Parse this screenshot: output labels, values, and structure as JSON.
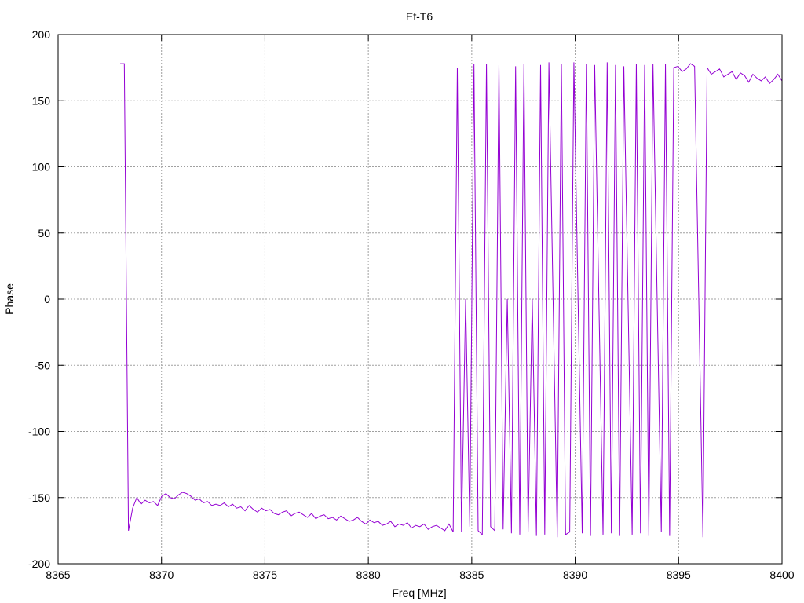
{
  "chart_data": {
    "type": "line",
    "title": "Ef-T6",
    "xlabel": "Freq [MHz]",
    "ylabel": "Phase",
    "xlim": [
      8365,
      8400
    ],
    "ylim": [
      -200,
      200
    ],
    "xticks": [
      8365,
      8370,
      8375,
      8380,
      8385,
      8390,
      8395,
      8400
    ],
    "yticks": [
      -200,
      -150,
      -100,
      -50,
      0,
      50,
      100,
      150,
      200
    ],
    "grid": true,
    "legend": "none",
    "x_start": 8368,
    "x_end": 8400,
    "series": [
      {
        "color": "#9400d3",
        "values": [
          178,
          178,
          -175,
          -158,
          -150,
          -155,
          -152,
          -154,
          -153,
          -156,
          -149,
          -147,
          -150,
          -151,
          -148,
          -146,
          -147,
          -149,
          -152,
          -151,
          -154,
          -153,
          -156,
          -155,
          -156,
          -154,
          -157,
          -155,
          -158,
          -157,
          -160,
          -156,
          -159,
          -161,
          -158,
          -160,
          -159,
          -162,
          -163,
          -161,
          -160,
          -164,
          -162,
          -161,
          -163,
          -165,
          -162,
          -166,
          -164,
          -163,
          -166,
          -165,
          -167,
          -164,
          -166,
          -168,
          -167,
          -165,
          -168,
          -170,
          -167,
          -169,
          -168,
          -171,
          -170,
          -168,
          -172,
          -170,
          -171,
          -169,
          -173,
          -171,
          -172,
          -170,
          -174,
          -172,
          -171,
          -173,
          -175,
          -170,
          -176,
          175,
          -176,
          0,
          -172,
          178,
          -175,
          -178,
          178,
          -172,
          -175,
          177,
          -174,
          0,
          -177,
          176,
          -178,
          178,
          -176,
          0,
          -179,
          177,
          -178,
          179,
          0,
          -180,
          178,
          -178,
          -176,
          179,
          0,
          -177,
          178,
          -179,
          177,
          0,
          -178,
          179,
          -177,
          177,
          -179,
          176,
          0,
          -178,
          178,
          -177,
          177,
          -179,
          178,
          0,
          -176,
          178,
          -179,
          175,
          176,
          172,
          174,
          178,
          176,
          0,
          -180,
          175,
          170,
          172,
          174,
          168,
          170,
          172,
          166,
          171,
          169,
          164,
          170,
          167,
          165,
          168,
          163,
          166,
          170,
          165
        ]
      }
    ]
  }
}
